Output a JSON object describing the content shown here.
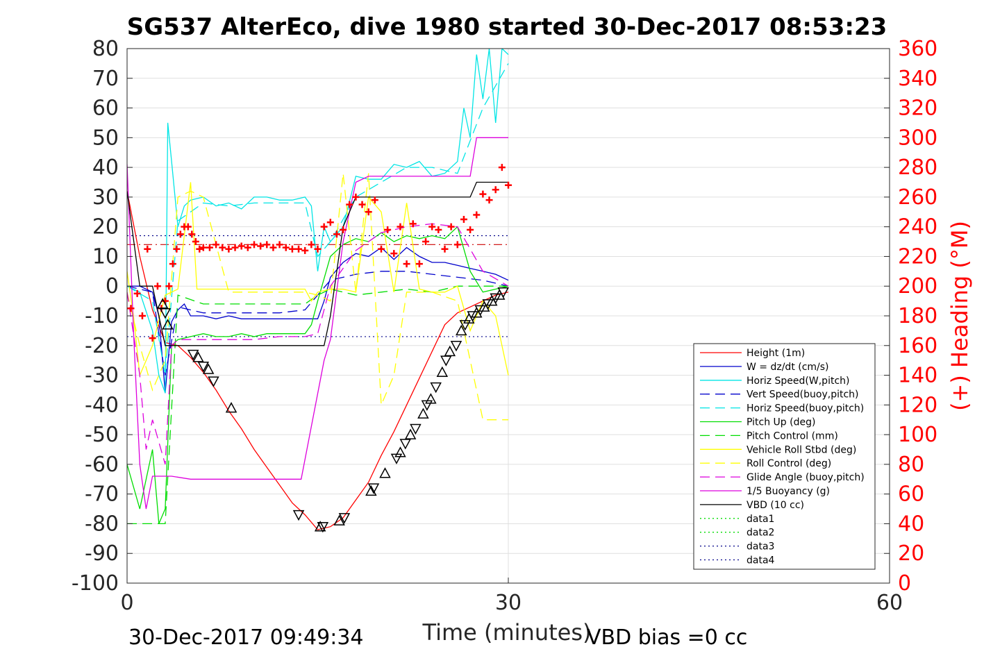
{
  "chart_data": {
    "type": "line",
    "title": "SG537 AlterEco, dive 1980 started 30-Dec-2017 08:53:23",
    "xlabel": "Time (minutes)",
    "ylabel_right": "(+) Heading (°M)",
    "xlim": [
      0,
      60
    ],
    "ylim": [
      -100,
      80
    ],
    "ylim_right": [
      0,
      360
    ],
    "x_ticks": [
      "0",
      "30",
      "60"
    ],
    "y_ticks": [
      "80",
      "70",
      "60",
      "50",
      "40",
      "30",
      "20",
      "10",
      "0",
      "-10",
      "-20",
      "-30",
      "-40",
      "-50",
      "-60",
      "-70",
      "-80",
      "-90",
      "-100"
    ],
    "y_ticks_right": [
      "360",
      "340",
      "320",
      "300",
      "280",
      "260",
      "240",
      "220",
      "200",
      "180",
      "160",
      "140",
      "120",
      "100",
      "80",
      "60",
      "40",
      "20",
      "0"
    ],
    "grid": true,
    "legend_position": "lower-right",
    "footer_left": "30-Dec-2017 09:49:34",
    "footer_right": "VBD bias =0 cc",
    "series": [
      {
        "name": "Height (1m)",
        "color": "#ff0000",
        "style": "solid",
        "x": [
          0,
          1,
          2,
          3,
          4,
          5,
          6,
          7,
          8,
          9,
          10,
          11,
          12,
          13,
          14,
          15,
          16,
          17,
          18,
          19,
          20,
          21,
          22,
          23,
          24,
          25,
          26,
          27,
          28,
          29,
          30
        ],
        "y": [
          32,
          10,
          -8,
          -19,
          -20,
          -24,
          -29,
          -35,
          -42,
          -48,
          -55,
          -61,
          -67,
          -73,
          -77,
          -82,
          -81,
          -78,
          -72,
          -66,
          -57,
          -49,
          -40,
          -31,
          -22,
          -13,
          -9,
          -7,
          -5,
          -3,
          -2
        ]
      },
      {
        "name": "W = dz/dt (cm/s)",
        "color": "#0000cc",
        "style": "solid",
        "x": [
          0,
          1,
          2,
          2.5,
          3,
          3.5,
          4,
          4.5,
          5,
          6,
          7,
          8,
          9,
          10,
          11,
          12,
          13,
          14,
          15,
          15.5,
          16,
          17,
          18,
          19,
          20,
          21,
          22,
          23,
          24,
          25,
          26,
          27,
          28,
          29,
          30
        ],
        "y": [
          0,
          0,
          -2,
          -10,
          -36,
          -12,
          -8,
          -6,
          -10,
          -10,
          -11,
          -10,
          -11,
          -11,
          -11,
          -11,
          -11,
          -11,
          -11,
          -5,
          3,
          8,
          11,
          10,
          13,
          9,
          13,
          10,
          8,
          8,
          7,
          6,
          5,
          4,
          2
        ]
      },
      {
        "name": "Horiz Speed(W,pitch)",
        "color": "#00e5e5",
        "style": "solid",
        "x": [
          0,
          1,
          2,
          2.5,
          3,
          3.2,
          3.5,
          4,
          4.5,
          5,
          6,
          7,
          8,
          9,
          10,
          11,
          12,
          13,
          14,
          14.5,
          15,
          15.5,
          16,
          17,
          18,
          19,
          20,
          21,
          22,
          23,
          24,
          25,
          26,
          26.5,
          27,
          27.5,
          28,
          28.5,
          29,
          29.5,
          30
        ],
        "y": [
          0,
          -2,
          -15,
          -30,
          -36,
          55,
          42,
          20,
          27,
          29,
          30,
          27,
          28,
          26,
          30,
          30,
          29,
          29,
          30,
          27,
          5,
          20,
          15,
          20,
          37,
          36,
          36,
          41,
          40,
          42,
          37,
          38,
          42,
          60,
          50,
          78,
          63,
          80,
          55,
          80,
          78
        ]
      },
      {
        "name": "Vert Speed(buoy,pitch)",
        "color": "#0000cc",
        "style": "dashed",
        "x": [
          0,
          2,
          3,
          4,
          6,
          8,
          10,
          12,
          14,
          15,
          16,
          18,
          20,
          22,
          24,
          26,
          28,
          30
        ],
        "y": [
          0,
          -2,
          -30,
          -7,
          -9,
          -9,
          -9,
          -9,
          -8,
          -3,
          2,
          4,
          5,
          5,
          4,
          3,
          2,
          0
        ]
      },
      {
        "name": "Horiz Speed(buoy,pitch)",
        "color": "#00e5e5",
        "style": "dashed",
        "x": [
          0,
          2,
          3,
          4,
          6,
          8,
          10,
          12,
          14,
          15,
          16,
          18,
          20,
          22,
          24,
          26,
          28,
          30
        ],
        "y": [
          0,
          -5,
          -30,
          22,
          28,
          27,
          28,
          28,
          28,
          10,
          15,
          30,
          35,
          40,
          40,
          38,
          60,
          75
        ]
      },
      {
        "name": "Pitch Up (deg)",
        "color": "#00dd00",
        "style": "solid",
        "x": [
          0,
          1,
          2,
          2.5,
          3,
          3.5,
          4,
          5,
          6,
          7,
          8,
          9,
          10,
          11,
          12,
          13,
          14,
          14.5,
          15,
          16,
          17,
          18,
          19,
          20,
          21,
          22,
          23,
          24,
          25,
          26,
          27,
          28,
          29,
          30
        ],
        "y": [
          -60,
          -75,
          -55,
          -80,
          -75,
          -20,
          -18,
          -17,
          -16,
          -17,
          -17,
          -16,
          -17,
          -16,
          -16,
          -16,
          -16,
          -13,
          -5,
          10,
          14,
          16,
          15,
          18,
          15,
          17,
          16,
          17,
          16,
          20,
          5,
          -2,
          -1,
          0
        ]
      },
      {
        "name": "Pitch Control (mm)",
        "color": "#00dd00",
        "style": "dashed",
        "x": [
          0,
          2,
          3,
          4,
          6,
          8,
          10,
          12,
          14,
          15,
          16,
          18,
          20,
          22,
          24,
          26,
          28,
          30
        ],
        "y": [
          -80,
          -80,
          -80,
          -3,
          -6,
          -6,
          -6,
          -6,
          -6,
          -3,
          -1,
          -3,
          -2,
          -1,
          -2,
          0,
          0,
          0
        ]
      },
      {
        "name": "Vehicle Roll Stbd (deg)",
        "color": "#ffff00",
        "style": "solid",
        "x": [
          0,
          0.5,
          1,
          2,
          3,
          4,
          5,
          5.5,
          6,
          7,
          8,
          9,
          10,
          11,
          12,
          13,
          14,
          14.5,
          15,
          16,
          17,
          18,
          19,
          20,
          21,
          22,
          23,
          24,
          25,
          26,
          27,
          28,
          29,
          30
        ],
        "y": [
          5,
          -10,
          -30,
          -20,
          -3,
          -1,
          35,
          -1,
          -1,
          -1,
          -1,
          -1,
          -1,
          -1,
          -1,
          -1,
          -1,
          -5,
          -2,
          -1,
          -1,
          -2,
          30,
          25,
          -2,
          28,
          -1,
          -2,
          -2,
          0,
          -15,
          -5,
          -10,
          -30
        ]
      },
      {
        "name": "Roll Control (deg)",
        "color": "#ffff00",
        "style": "dashed",
        "x": [
          0,
          1,
          2,
          3,
          4,
          5,
          6,
          8,
          10,
          12,
          14,
          15,
          16,
          17,
          18,
          19,
          20,
          21,
          22,
          24,
          26,
          28,
          29,
          30
        ],
        "y": [
          -2,
          -20,
          -35,
          -25,
          30,
          32,
          30,
          -2,
          -2,
          -2,
          -2,
          -3,
          -5,
          38,
          -2,
          38,
          -40,
          -30,
          -2,
          -2,
          -5,
          -45,
          -45,
          -45
        ]
      },
      {
        "name": "Glide Angle (buoy,pitch)",
        "color": "#dd00dd",
        "style": "dashed",
        "x": [
          0,
          1,
          1.5,
          2,
          3,
          3.5,
          4,
          5,
          6,
          8,
          10,
          12,
          14,
          15,
          16,
          18,
          20,
          22,
          24,
          26,
          28,
          30
        ],
        "y": [
          -2,
          -30,
          -55,
          -45,
          -60,
          -20,
          -18,
          -18,
          -18,
          -18,
          -18,
          -17,
          -17,
          -16,
          0,
          12,
          18,
          20,
          21,
          20,
          5,
          0
        ]
      },
      {
        "name": "1/5 Buoyancy (g)",
        "color": "#dd00dd",
        "style": "solid",
        "x": [
          0,
          0.5,
          1,
          1.5,
          2,
          2.5,
          3,
          3.5,
          5,
          8,
          10,
          12,
          13.7,
          15.5,
          16,
          17,
          18,
          19,
          20,
          21,
          22,
          24,
          26,
          27,
          27.5,
          28,
          29,
          30
        ],
        "y": [
          41,
          -15,
          -60,
          -75,
          -64,
          -64,
          -64,
          -64,
          -65,
          -65,
          -65,
          -65,
          -65,
          -25,
          -18,
          15,
          35,
          37,
          37,
          37,
          37,
          37,
          37,
          37,
          50,
          50,
          50,
          50
        ]
      },
      {
        "name": "VBD (10 cc)",
        "color": "#000000",
        "style": "solid",
        "x": [
          0,
          1,
          2,
          2.5,
          3,
          4,
          8,
          12,
          13.7,
          15.5,
          16,
          17,
          18,
          19,
          22,
          25,
          27,
          27.5,
          28,
          30
        ],
        "y": [
          32,
          0,
          0,
          -10,
          -20,
          -20,
          -20,
          -20,
          -20,
          -20,
          -10,
          20,
          30,
          30,
          30,
          30,
          30,
          35,
          35,
          35
        ]
      },
      {
        "name": "data1",
        "color": "#00dd00",
        "style": "dotted"
      },
      {
        "name": "data2",
        "color": "#00dd00",
        "style": "dotted"
      },
      {
        "name": "data3",
        "color": "#000088",
        "style": "dotted"
      },
      {
        "name": "data4",
        "color": "#000088",
        "style": "dotted"
      }
    ],
    "reference_lines": [
      {
        "color": "#cc0000",
        "style": "dashdot",
        "y": 14
      },
      {
        "color": "#000088",
        "style": "dotted",
        "y": 17
      },
      {
        "color": "#000088",
        "style": "dotted",
        "y": -17
      }
    ],
    "heading_points": {
      "marker": "+",
      "color": "#ff0000",
      "x": [
        0.3,
        0.8,
        1.2,
        1.6,
        2.0,
        2.4,
        2.7,
        3.0,
        3.3,
        3.6,
        3.9,
        4.2,
        4.5,
        4.8,
        5.1,
        5.4,
        5.7,
        6.0,
        6.5,
        7.0,
        7.5,
        8.0,
        8.5,
        9.0,
        9.5,
        10.0,
        10.5,
        11.0,
        11.5,
        12.0,
        12.5,
        13.0,
        13.5,
        14.0,
        14.5,
        15.0,
        15.5,
        16.0,
        16.5,
        17.0,
        17.5,
        18.0,
        18.5,
        19.0,
        19.5,
        20.0,
        20.5,
        21.0,
        21.5,
        22.0,
        22.5,
        23.0,
        23.5,
        24.0,
        24.5,
        25.0,
        25.5,
        26.0,
        26.5,
        27.0,
        27.5,
        28.0,
        28.5,
        29.0,
        29.5,
        30.0
      ],
      "y": [
        185,
        195,
        180,
        225,
        165,
        200,
        185,
        190,
        200,
        215,
        225,
        235,
        240,
        240,
        235,
        230,
        225,
        226,
        226,
        228,
        226,
        225,
        226,
        227,
        226,
        228,
        227,
        228,
        226,
        228,
        226,
        225,
        225,
        224,
        228,
        225,
        240,
        243,
        235,
        238,
        255,
        260,
        255,
        250,
        258,
        225,
        238,
        222,
        240,
        215,
        242,
        215,
        230,
        240,
        238,
        225,
        240,
        228,
        245,
        238,
        248,
        262,
        258,
        265,
        280,
        268
      ]
    },
    "depth_markers": {
      "marker": "triangle",
      "color": "#000000",
      "x": [
        2.8,
        3.0,
        3.2,
        5.2,
        5.6,
        6.0,
        6.4,
        6.8,
        8.2,
        13.5,
        15.2,
        15.4,
        16.7,
        17.1,
        19.2,
        19.4,
        20.3,
        21.2,
        21.5,
        21.9,
        22.3,
        22.7,
        23.3,
        23.6,
        23.9,
        24.3,
        24.8,
        25.1,
        25.4,
        25.9,
        26.3,
        26.6,
        26.9,
        27.2,
        27.5,
        27.8,
        28.1,
        28.4,
        28.7,
        29.0,
        29.3,
        29.6
      ],
      "y": [
        -6,
        -9,
        -13,
        -23,
        -24,
        -27,
        -28,
        -32,
        -41,
        -77,
        -81,
        -81,
        -79,
        -78,
        -69,
        -68,
        -63,
        -58,
        -56,
        -53,
        -50,
        -48,
        -43,
        -40,
        -38,
        -34,
        -29,
        -25,
        -22,
        -20,
        -15,
        -13,
        -11,
        -10,
        -9,
        -8,
        -7,
        -6,
        -5,
        -4,
        -3,
        -2
      ]
    }
  }
}
